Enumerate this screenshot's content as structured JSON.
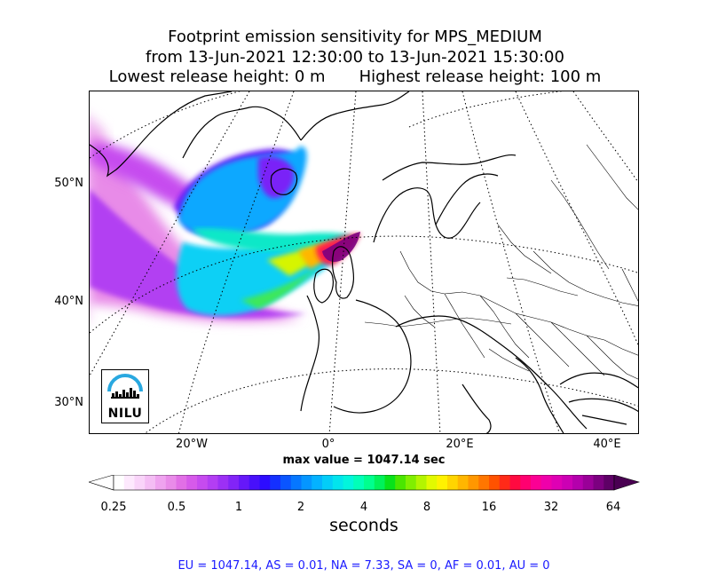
{
  "title": {
    "line1": "Footprint emission sensitivity for MPS_MEDIUM",
    "line2": "from 13-Jun-2021 12:30:00 to 13-Jun-2021 15:30:00",
    "lowest_release": "Lowest release height: 0 m",
    "highest_release": "Highest release height: 100 m"
  },
  "map": {
    "lat_labels": [
      "50°N",
      "40°N",
      "30°N"
    ],
    "lon_labels": [
      "20°W",
      "0°",
      "20°E",
      "40°E"
    ]
  },
  "max_value_text": "max value = 1047.14 sec",
  "colorbar": {
    "tick_labels": [
      "0.25",
      "0.5",
      "1",
      "2",
      "4",
      "8",
      "16",
      "32",
      "64"
    ],
    "units": "seconds",
    "colors": [
      "#ffffff",
      "#fde9fd",
      "#f9d4f9",
      "#f4bdf4",
      "#efa3ef",
      "#e98be9",
      "#e16fe6",
      "#d65aea",
      "#c64bef",
      "#b33ef3",
      "#9c30f5",
      "#8224f7",
      "#6618f9",
      "#4810fb",
      "#2d0cff",
      "#1430ff",
      "#0a55ff",
      "#0677ff",
      "#0596ff",
      "#04b2ff",
      "#03cdf8",
      "#02e4ed",
      "#02f5dc",
      "#01ffb8",
      "#00ff8e",
      "#00f25a",
      "#08e21a",
      "#4ae600",
      "#80ef00",
      "#b3f500",
      "#e2fa00",
      "#fff200",
      "#ffd500",
      "#ffb600",
      "#ff9700",
      "#ff7600",
      "#ff5200",
      "#ff2a18",
      "#ff0a40",
      "#ff0070",
      "#fb0094",
      "#ef00aa",
      "#df00b4",
      "#cc00b4",
      "#b400ac",
      "#9a0098",
      "#7c0080",
      "#5e0066"
    ],
    "under_color": "#ffffff",
    "over_color": "#4a0052"
  },
  "stats_text": "EU = 1047.14,  AS = 0.01,  NA = 7.33,  SA = 0,  AF = 0.01,  AU = 0",
  "logo": {
    "text": "NILU",
    "accent": "#29a8e0"
  }
}
